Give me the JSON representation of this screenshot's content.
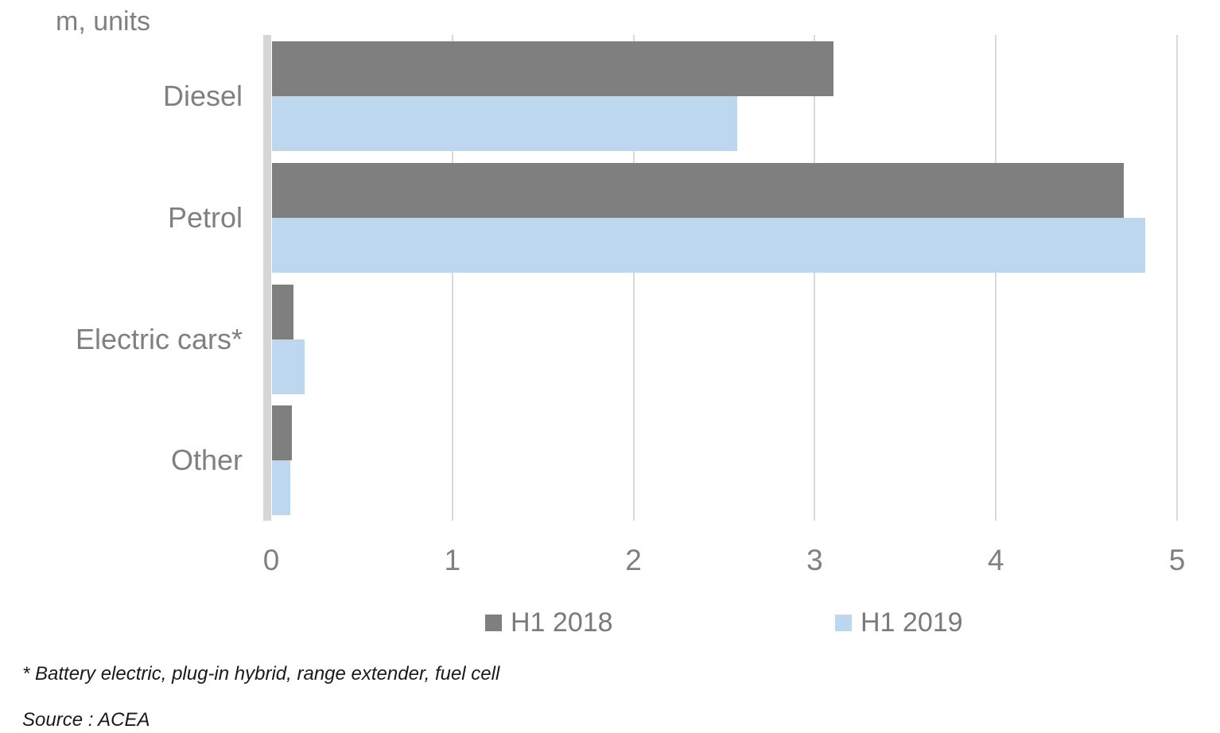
{
  "header": {
    "units_label": "m, units"
  },
  "footnotes": {
    "asterisk_note": "* Battery electric, plug-in hybrid, range extender, fuel cell",
    "source": "Source : ACEA"
  },
  "colors": {
    "h1_2018": "#7F7F7F",
    "h1_2019": "#BDD7EE",
    "axis_strip": "#D6D6D6",
    "gridline": "#D9D9D9",
    "gray_text": "#808080",
    "footnote_text": "#1A1A1A"
  },
  "chart_data": {
    "type": "bar",
    "orientation": "horizontal",
    "title": "",
    "units": "m, units",
    "categories": [
      "Diesel",
      "Petrol",
      "Electric cars*",
      "Other"
    ],
    "series": [
      {
        "name": "H1 2018",
        "color": "#7F7F7F",
        "values": [
          3.1,
          4.7,
          0.12,
          0.11
        ]
      },
      {
        "name": "H1 2019",
        "color": "#BDD7EE",
        "values": [
          2.57,
          4.82,
          0.18,
          0.1
        ]
      }
    ],
    "xlim": [
      0,
      5
    ],
    "xticks": [
      0,
      1,
      2,
      3,
      4,
      5
    ],
    "grid": true,
    "legend_position": "bottom",
    "footnote": "* Battery electric, plug-in hybrid, range extender, fuel cell",
    "source": "Source : ACEA"
  }
}
